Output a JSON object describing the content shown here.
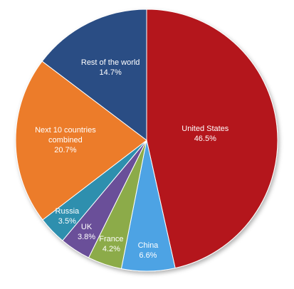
{
  "chart_data": {
    "type": "pie",
    "categories": [
      "United States",
      "China",
      "France",
      "UK",
      "Russia",
      "Next 10 countries combined",
      "Rest of the world"
    ],
    "values": [
      46.5,
      6.6,
      4.2,
      3.8,
      3.5,
      20.7,
      14.7
    ],
    "value_labels": [
      "46.5%",
      "6.6%",
      "4.2%",
      "3.8%",
      "3.5%",
      "20.7%",
      "14.7%"
    ],
    "colors": [
      "#b4191f",
      "#4ea3e4",
      "#8cab48",
      "#6a4f99",
      "#2e8fae",
      "#ec7c2b",
      "#2b4e84"
    ],
    "start_angle": 0,
    "direction": "clockwise"
  }
}
